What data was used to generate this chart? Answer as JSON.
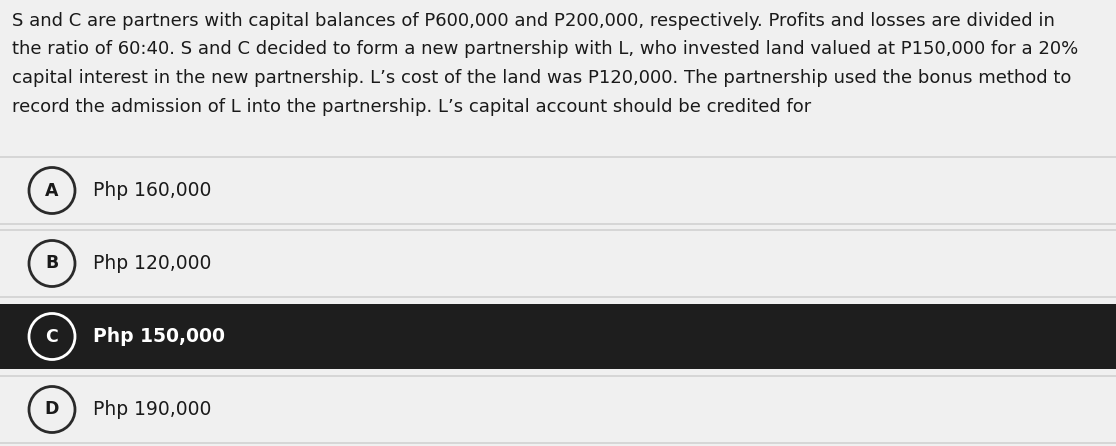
{
  "question_text": "S and C are partners with capital balances of P600,000 and P200,000, respectively. Profits and losses are divided in\nthe ratio of 60:40. S and C decided to form a new partnership with L, who invested land valued at P150,000 for a 20%\ncapital interest in the new partnership. L’s cost of the land was P120,000. The partnership used the bonus method to\nrecord the admission of L into the partnership. L’s capital account should be credited for",
  "options": [
    {
      "letter": "A",
      "text": "Php 160,000",
      "selected": false
    },
    {
      "letter": "B",
      "text": "Php 120,000",
      "selected": false
    },
    {
      "letter": "C",
      "text": "Php 150,000",
      "selected": true
    },
    {
      "letter": "D",
      "text": "Php 190,000",
      "selected": false
    }
  ],
  "bg_color": "#f0f0f0",
  "option_bg_normal": "#f0f0f0",
  "option_bg_selected": "#1e1e1e",
  "option_text_normal": "#1a1a1a",
  "option_text_selected": "#ffffff",
  "option_border_color": "#bbbbbb",
  "question_text_color": "#1a1a1a",
  "circle_bg_normal": "#f0f0f0",
  "circle_bg_selected": "#1e1e1e",
  "circle_border_normal": "#2a2a2a",
  "circle_border_selected": "#ffffff",
  "question_font_size": 13.0,
  "option_font_size": 13.5,
  "letter_font_size": 12.5
}
